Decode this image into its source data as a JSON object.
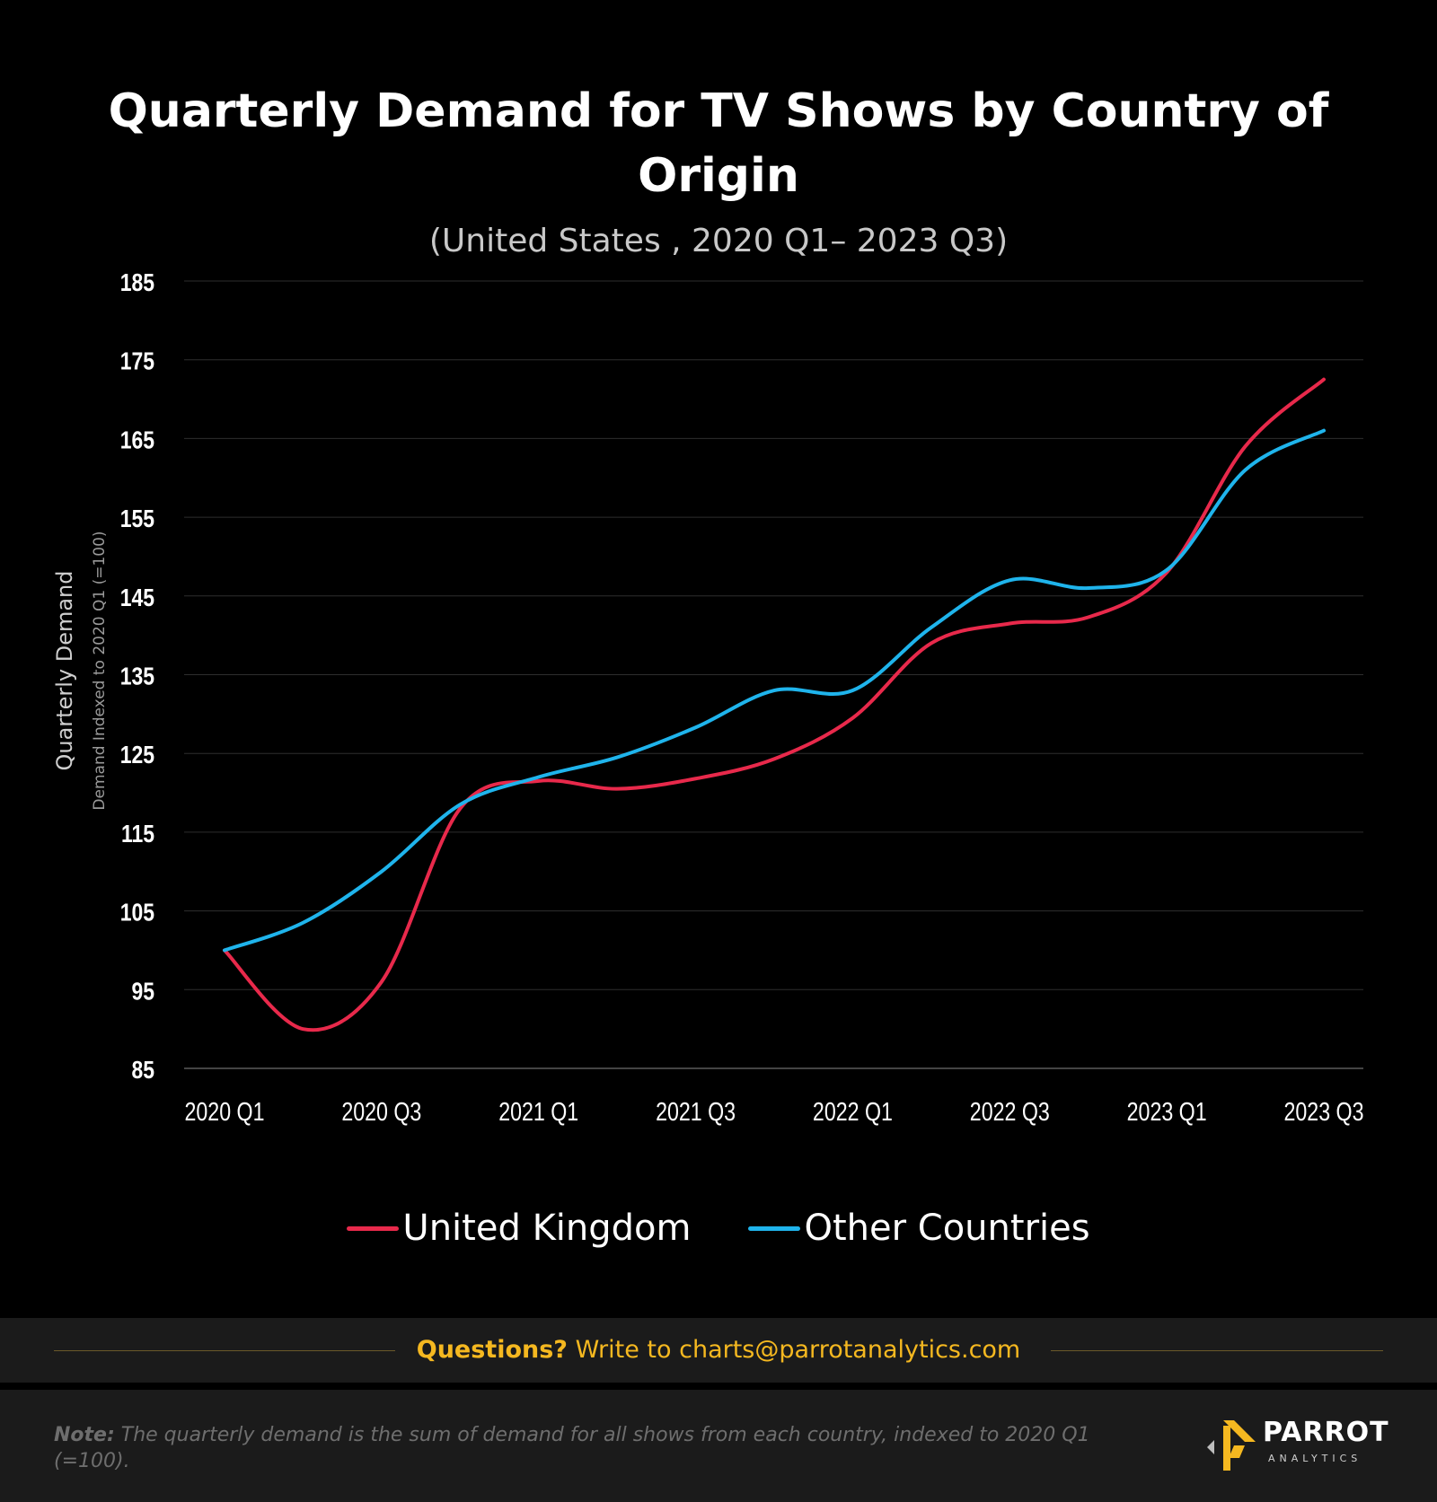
{
  "chart_data": {
    "type": "line",
    "title": "Quarterly Demand for TV Shows by Country of Origin",
    "subtitle": "(United States , 2020 Q1– 2023 Q3)",
    "ylabel": "Quarterly Demand",
    "ylabel_sub": "Demand Indexed to 2020 Q1 (=100)",
    "xlabel": "",
    "categories": [
      "2020 Q1",
      "2020 Q2",
      "2020 Q3",
      "2020 Q4",
      "2021 Q1",
      "2021 Q2",
      "2021 Q3",
      "2021 Q4",
      "2022 Q1",
      "2022 Q2",
      "2022 Q3",
      "2022 Q4",
      "2023 Q1",
      "2023 Q2",
      "2023 Q3"
    ],
    "x_tick_labels": [
      "2020 Q1",
      "",
      "2020 Q3",
      "",
      "2021 Q1",
      "",
      "2021 Q3",
      "",
      "2022 Q1",
      "",
      "2022 Q3",
      "",
      "2023 Q1",
      "",
      "2023 Q3"
    ],
    "y_ticks": [
      85,
      95,
      105,
      115,
      125,
      135,
      145,
      155,
      165,
      175,
      185
    ],
    "ylim": [
      85,
      185
    ],
    "grid": true,
    "legend_position": "bottom",
    "series": [
      {
        "name": "United Kingdom",
        "color": "#e8294b",
        "values": [
          100,
          90,
          96,
          118,
          121.5,
          120.5,
          121.8,
          124.3,
          129.5,
          139,
          141.5,
          142.3,
          148,
          164,
          172.5
        ]
      },
      {
        "name": "Other Countries",
        "color": "#1fb4ec",
        "values": [
          100,
          103.5,
          110,
          118.5,
          122,
          124.5,
          128.3,
          133,
          133,
          141,
          147,
          146,
          148.3,
          161,
          166
        ]
      }
    ]
  },
  "footer": {
    "questions_label": "Questions?",
    "questions_text": " Write to charts@parrotanalytics.com",
    "note_label": "Note:",
    "note_text": " The quarterly demand is the sum of demand for all shows from each country, indexed to 2020 Q1 (=100).",
    "logo_word": "PARROT",
    "logo_sub": "ANALYTICS",
    "accent_color": "#f5b820"
  }
}
